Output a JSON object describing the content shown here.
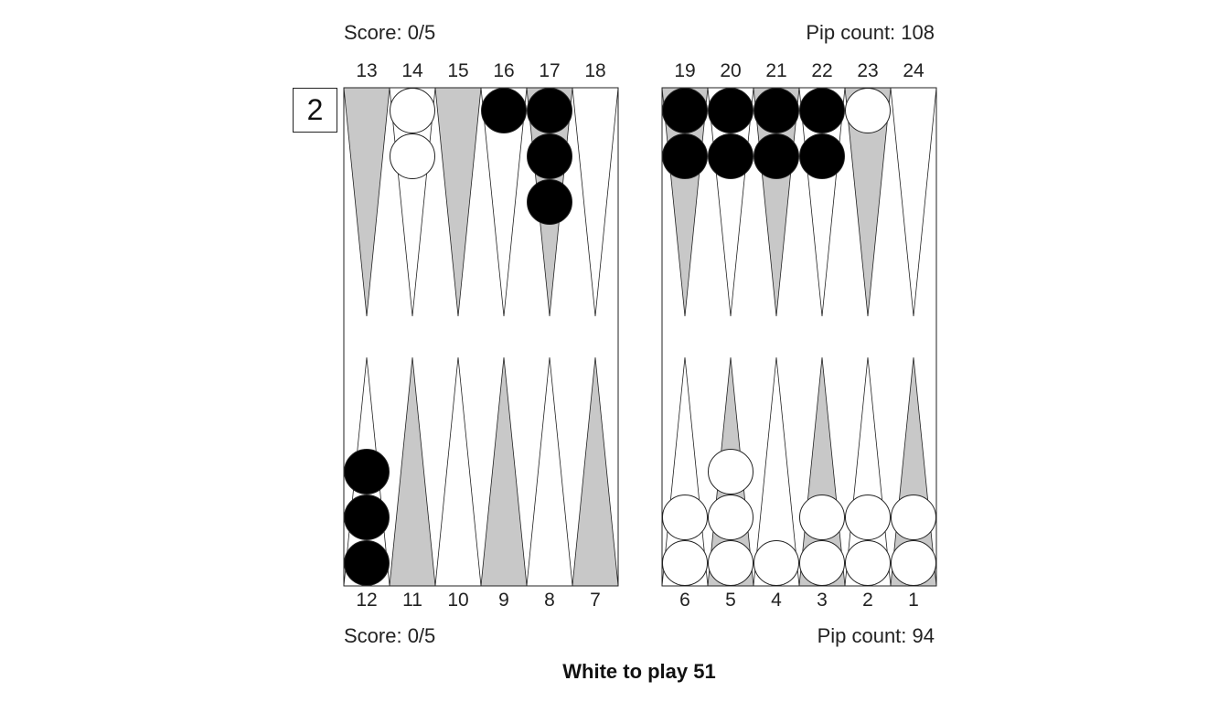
{
  "top_player": {
    "score": "Score: 0/5",
    "pip_count": "Pip count: 108"
  },
  "bottom_player": {
    "score": "Score: 0/5",
    "pip_count": "Pip count: 94"
  },
  "cube": {
    "value": "2"
  },
  "status": "White to play 51",
  "point_labels": {
    "top": [
      "13",
      "14",
      "15",
      "16",
      "17",
      "18",
      "19",
      "20",
      "21",
      "22",
      "23",
      "24"
    ],
    "bottom": [
      "12",
      "11",
      "10",
      "9",
      "8",
      "7",
      "6",
      "5",
      "4",
      "3",
      "2",
      "1"
    ]
  },
  "colors": {
    "light_point": "#ffffff",
    "dark_point": "#c8c8c8",
    "black_checker": "#000000",
    "white_checker": "#ffffff",
    "outline": "#222222"
  },
  "board": {
    "points": [
      {
        "point": 1,
        "color": "white",
        "count": 2
      },
      {
        "point": 2,
        "color": "white",
        "count": 2
      },
      {
        "point": 3,
        "color": "white",
        "count": 2
      },
      {
        "point": 4,
        "color": "white",
        "count": 1
      },
      {
        "point": 5,
        "color": "white",
        "count": 3
      },
      {
        "point": 6,
        "color": "white",
        "count": 2
      },
      {
        "point": 12,
        "color": "black",
        "count": 3
      },
      {
        "point": 14,
        "color": "white",
        "count": 2
      },
      {
        "point": 16,
        "color": "black",
        "count": 1
      },
      {
        "point": 17,
        "color": "black",
        "count": 3
      },
      {
        "point": 19,
        "color": "black",
        "count": 2
      },
      {
        "point": 20,
        "color": "black",
        "count": 2
      },
      {
        "point": 21,
        "color": "black",
        "count": 2
      },
      {
        "point": 22,
        "color": "black",
        "count": 2
      },
      {
        "point": 23,
        "color": "white",
        "count": 1
      }
    ]
  }
}
